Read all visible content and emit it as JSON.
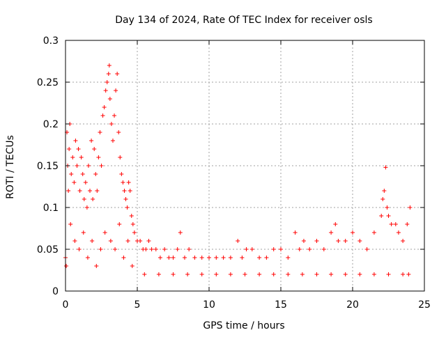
{
  "chart_data": {
    "type": "scatter",
    "title": "Day 134 of 2024, Rate Of TEC Index for receiver osls",
    "xlabel": "GPS time / hours",
    "ylabel": "ROTI / TECUs",
    "xlim": [
      0,
      25
    ],
    "ylim": [
      0,
      0.3
    ],
    "xticks": [
      0,
      5,
      10,
      15,
      20,
      25
    ],
    "xtick_labels": [
      "0",
      "5",
      "10",
      "15",
      "20",
      "25"
    ],
    "yticks": [
      0,
      0.05,
      0.1,
      0.15,
      0.2,
      0.25,
      0.3
    ],
    "ytick_labels": [
      "0",
      "0.05",
      "0.1",
      "0.15",
      "0.2",
      "0.25",
      "0.3"
    ],
    "grid": true,
    "marker": "plus",
    "marker_color": "#ff0000",
    "series": [
      {
        "name": "ROTI",
        "x": [
          0.0,
          0.1,
          0.15,
          0.2,
          0.25,
          0.3,
          0.4,
          0.5,
          0.6,
          0.7,
          0.8,
          0.9,
          1.0,
          1.1,
          1.2,
          1.3,
          1.4,
          1.5,
          1.6,
          1.7,
          1.8,
          1.9,
          2.0,
          2.1,
          2.2,
          2.3,
          2.4,
          2.5,
          2.6,
          2.7,
          2.8,
          2.9,
          3.0,
          3.05,
          3.1,
          3.2,
          3.3,
          3.4,
          3.5,
          3.6,
          3.7,
          3.8,
          3.9,
          4.0,
          4.1,
          4.2,
          4.3,
          4.4,
          4.5,
          4.6,
          4.7,
          4.8,
          5.0,
          5.2,
          5.4,
          5.6,
          5.8,
          6.0,
          6.3,
          6.6,
          6.9,
          7.2,
          7.5,
          7.8,
          8.0,
          8.3,
          8.6,
          9.0,
          9.5,
          10.0,
          10.5,
          11.0,
          11.5,
          12.0,
          12.3,
          12.6,
          13.0,
          13.5,
          14.0,
          14.5,
          15.0,
          15.5,
          16.0,
          16.3,
          16.6,
          17.0,
          17.5,
          18.0,
          18.5,
          18.8,
          19.0,
          19.5,
          20.0,
          20.5,
          21.0,
          21.5,
          22.0,
          22.1,
          22.2,
          22.3,
          22.4,
          22.5,
          22.7,
          23.0,
          23.2,
          23.5,
          23.8,
          24.0,
          0.05,
          0.35,
          0.65,
          0.95,
          1.25,
          1.55,
          1.85,
          2.15,
          2.45,
          2.75,
          3.15,
          3.45,
          3.75,
          4.05,
          4.35,
          4.65,
          5.5,
          6.5,
          7.5,
          8.5,
          9.5,
          10.5,
          11.5,
          12.5,
          13.5,
          14.5,
          15.5,
          16.5,
          17.5,
          18.5,
          19.5,
          20.5,
          21.5,
          22.5,
          23.5,
          23.9
        ],
        "y": [
          0.04,
          0.19,
          0.15,
          0.12,
          0.17,
          0.2,
          0.14,
          0.16,
          0.13,
          0.18,
          0.15,
          0.17,
          0.12,
          0.16,
          0.14,
          0.11,
          0.13,
          0.1,
          0.15,
          0.12,
          0.18,
          0.11,
          0.17,
          0.14,
          0.12,
          0.16,
          0.19,
          0.15,
          0.21,
          0.22,
          0.24,
          0.25,
          0.26,
          0.27,
          0.23,
          0.2,
          0.18,
          0.21,
          0.24,
          0.26,
          0.19,
          0.16,
          0.14,
          0.13,
          0.12,
          0.11,
          0.1,
          0.13,
          0.12,
          0.09,
          0.08,
          0.07,
          0.06,
          0.06,
          0.05,
          0.05,
          0.06,
          0.05,
          0.05,
          0.04,
          0.05,
          0.04,
          0.04,
          0.05,
          0.07,
          0.04,
          0.05,
          0.04,
          0.04,
          0.04,
          0.04,
          0.04,
          0.04,
          0.06,
          0.04,
          0.05,
          0.05,
          0.04,
          0.04,
          0.05,
          0.05,
          0.04,
          0.07,
          0.05,
          0.06,
          0.05,
          0.06,
          0.05,
          0.07,
          0.08,
          0.06,
          0.06,
          0.07,
          0.06,
          0.05,
          0.07,
          0.09,
          0.11,
          0.12,
          0.148,
          0.1,
          0.09,
          0.08,
          0.08,
          0.07,
          0.06,
          0.08,
          0.1,
          0.03,
          0.08,
          0.06,
          0.05,
          0.07,
          0.04,
          0.06,
          0.03,
          0.05,
          0.07,
          0.06,
          0.05,
          0.08,
          0.04,
          0.06,
          0.03,
          0.02,
          0.02,
          0.02,
          0.02,
          0.02,
          0.02,
          0.02,
          0.02,
          0.02,
          0.02,
          0.02,
          0.02,
          0.02,
          0.02,
          0.02,
          0.02,
          0.02,
          0.02,
          0.02,
          0.02
        ]
      }
    ]
  }
}
